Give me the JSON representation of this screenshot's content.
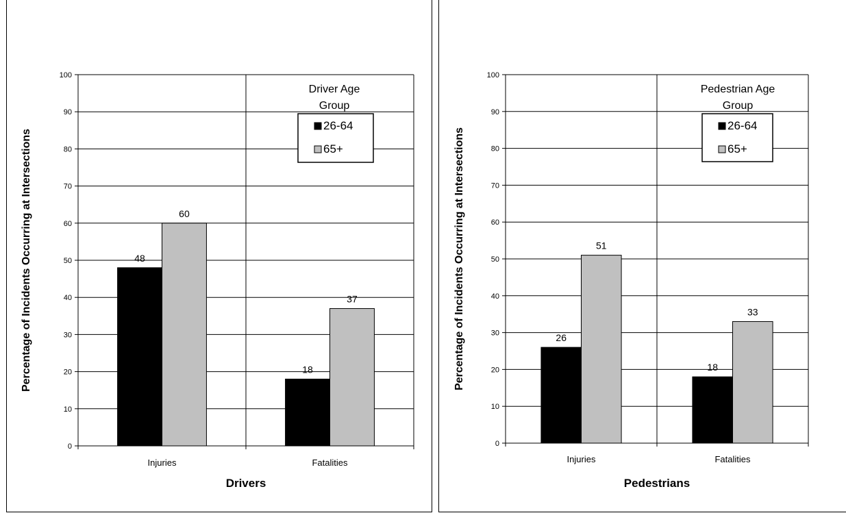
{
  "chart_data": [
    {
      "type": "bar",
      "title": "",
      "categories": [
        "Injuries",
        "Fatalities"
      ],
      "series": [
        {
          "name": "26-64",
          "values": [
            48,
            18
          ]
        },
        {
          "name": "65+",
          "values": [
            60,
            37
          ]
        }
      ],
      "xlabel": "Drivers",
      "ylabel": "Percentage of Incidents Occurring at Intersections",
      "ylim": [
        0,
        100
      ],
      "yticks": [
        0,
        10,
        20,
        30,
        40,
        50,
        60,
        70,
        80,
        90,
        100
      ],
      "legend": {
        "title": "Driver Age Group",
        "position": "top-right"
      },
      "grid": true,
      "colors": {
        "26-64": "#000000",
        "65+": "#c0c0c0"
      }
    },
    {
      "type": "bar",
      "title": "",
      "categories": [
        "Injuries",
        "Fatalities"
      ],
      "series": [
        {
          "name": "26-64",
          "values": [
            26,
            18
          ]
        },
        {
          "name": "65+",
          "values": [
            51,
            33
          ]
        }
      ],
      "xlabel": "Pedestrians",
      "ylabel": "Percentage of Incidents Occurring at Intersections",
      "ylim": [
        0,
        100
      ],
      "yticks": [
        0,
        10,
        20,
        30,
        40,
        50,
        60,
        70,
        80,
        90,
        100
      ],
      "legend": {
        "title": "Pedestrian Age Group",
        "position": "top-right"
      },
      "grid": true,
      "colors": {
        "26-64": "#000000",
        "65+": "#c0c0c0"
      }
    }
  ]
}
